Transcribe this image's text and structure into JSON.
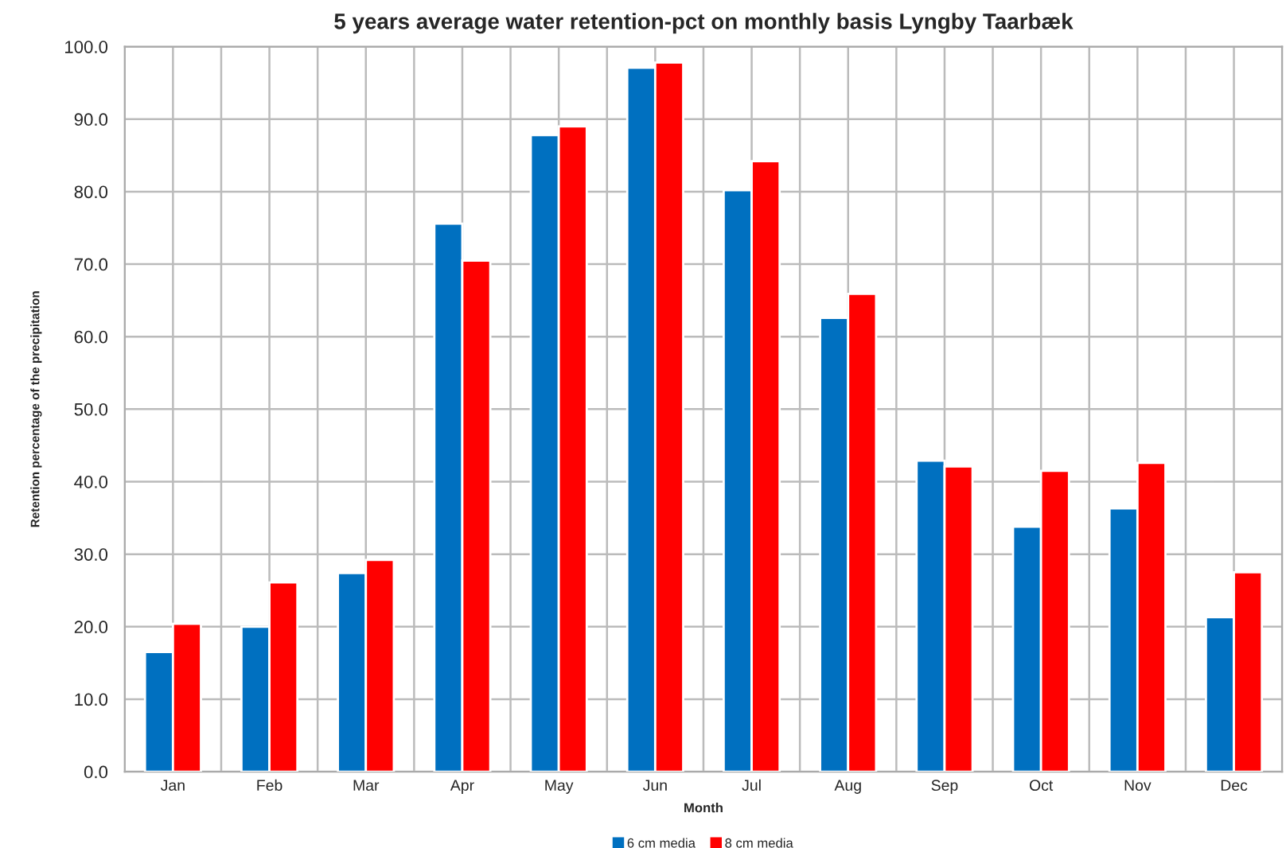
{
  "chart_data": {
    "type": "bar",
    "title": "5 years average water retention-pct on monthly basis Lyngby Taarbæk",
    "xlabel": "Month",
    "ylabel": "Retention percentage of the precipitation",
    "categories": [
      "Jan",
      "Feb",
      "Mar",
      "Apr",
      "May",
      "Jun",
      "Jul",
      "Aug",
      "Sep",
      "Oct",
      "Nov",
      "Dec"
    ],
    "series": [
      {
        "name": "6 cm media",
        "color": "#0070c0",
        "values": [
          16.5,
          20.0,
          27.4,
          75.6,
          87.8,
          97.1,
          80.2,
          62.6,
          42.9,
          33.8,
          36.3,
          21.3
        ]
      },
      {
        "name": "8 cm media",
        "color": "#ff0000",
        "values": [
          20.4,
          26.1,
          29.2,
          70.5,
          89.0,
          97.8,
          84.2,
          65.9,
          42.1,
          41.5,
          42.6,
          27.5
        ]
      }
    ],
    "ylim": [
      0,
      100
    ],
    "yticks": [
      {
        "value": 0,
        "label": "0.0"
      },
      {
        "value": 10,
        "label": "10.0"
      },
      {
        "value": 20,
        "label": "20.0"
      },
      {
        "value": 30,
        "label": "30.0"
      },
      {
        "value": 40,
        "label": "40.0"
      },
      {
        "value": 50,
        "label": "50.0"
      },
      {
        "value": 60,
        "label": "60.0"
      },
      {
        "value": 70,
        "label": "70.0"
      },
      {
        "value": 80,
        "label": "80.0"
      },
      {
        "value": 90,
        "label": "90.0"
      },
      {
        "value": 100,
        "label": "100.0"
      }
    ],
    "grid": true,
    "legend": "bottom"
  }
}
